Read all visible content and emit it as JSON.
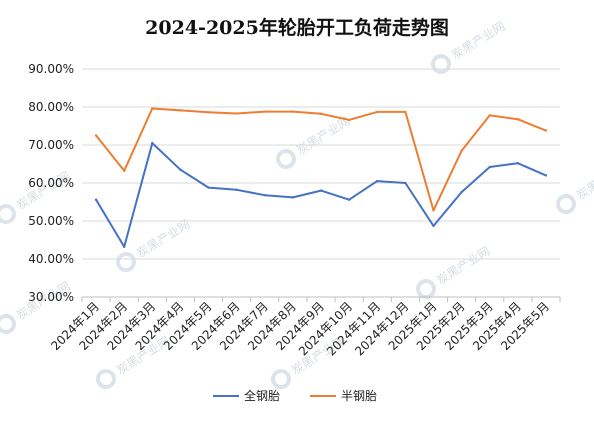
{
  "chart_data": {
    "type": "line",
    "title": "2024-2025年轮胎开工负荷走势图",
    "xlabel": "",
    "ylabel": "",
    "categories": [
      "2024年1月",
      "2024年2月",
      "2024年3月",
      "2024年4月",
      "2024年5月",
      "2024年6月",
      "2024年7月",
      "2024年8月",
      "2024年9月",
      "2024年10月",
      "2024年11月",
      "2024年12月",
      "2025年1月",
      "2025年2月",
      "2025年3月",
      "2025年4月",
      "2025年5月"
    ],
    "ylim": [
      30,
      90
    ],
    "yticks": [
      "30.00%",
      "40.00%",
      "50.00%",
      "60.00%",
      "70.00%",
      "80.00%",
      "90.00%"
    ],
    "grid": "horizontal",
    "legend_position": "bottom",
    "series": [
      {
        "name": "全钢胎",
        "color": "#4472c4",
        "values": [
          55.6,
          43.2,
          70.5,
          63.5,
          58.8,
          58.2,
          56.8,
          56.2,
          58.0,
          55.6,
          60.5,
          60.0,
          48.7,
          57.6,
          64.2,
          65.2,
          62.0
        ]
      },
      {
        "name": "半钢胎",
        "color": "#ed7d31",
        "values": [
          72.5,
          63.2,
          79.6,
          79.1,
          78.6,
          78.3,
          78.8,
          78.8,
          78.2,
          76.6,
          78.7,
          78.7,
          52.8,
          68.5,
          77.8,
          76.8,
          73.8
        ]
      }
    ]
  },
  "watermark": {
    "text": "炭黑产业网"
  }
}
